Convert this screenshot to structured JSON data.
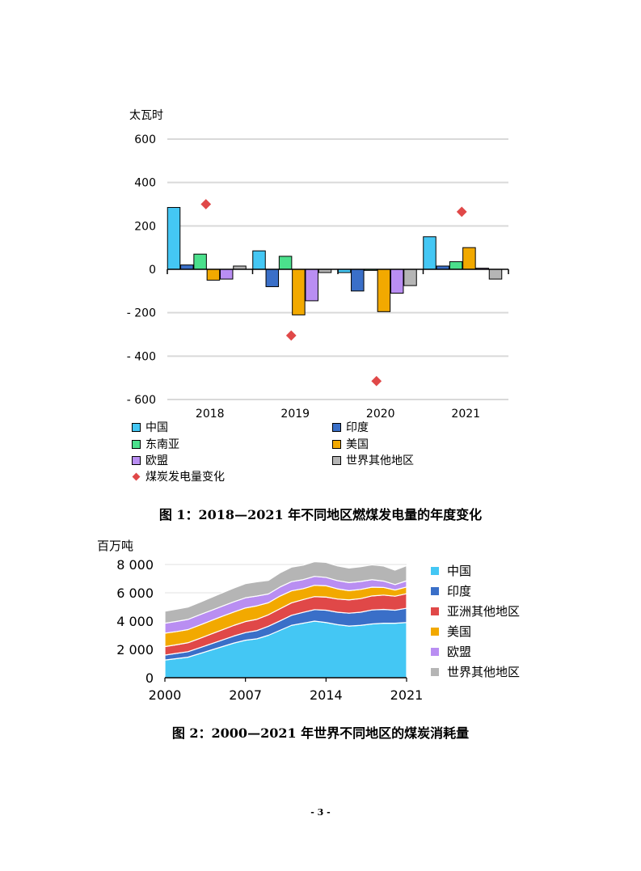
{
  "chart1": {
    "unit": "太瓦时",
    "caption": "图 1：2018—2021 年不同地区燃煤发电量的年度变化",
    "colors": {
      "中国": "#44c7f4",
      "印度": "#3a6fc8",
      "东南亚": "#4be08c",
      "美国": "#f2a900",
      "欧盟": "#b98ef2",
      "世界其他地区": "#b5b5b5",
      "煤炭发电量变化": "#e04848"
    },
    "icons": {
      "煤炭发电量变化": "diamond-marker"
    },
    "legend": [
      "中国",
      "印度",
      "东南亚",
      "美国",
      "欧盟",
      "世界其他地区",
      "煤炭发电量变化"
    ],
    "chart_data": {
      "type": "bar",
      "categories": [
        "2018",
        "2019",
        "2020",
        "2021"
      ],
      "ylim": [
        -600,
        600
      ],
      "yticks": [
        600,
        400,
        200,
        0,
        -200,
        -400,
        -600
      ],
      "ytick_labels": [
        "600",
        "400",
        "200",
        "0",
        "- 200",
        "- 400",
        "- 600"
      ],
      "grid": true,
      "series": [
        {
          "name": "中国",
          "values": [
            285,
            85,
            -15,
            150
          ]
        },
        {
          "name": "印度",
          "values": [
            20,
            -80,
            -100,
            15
          ]
        },
        {
          "name": "东南亚",
          "values": [
            70,
            60,
            -5,
            35
          ]
        },
        {
          "name": "美国",
          "values": [
            -50,
            -210,
            -195,
            100
          ]
        },
        {
          "name": "欧盟",
          "values": [
            -45,
            -145,
            -110,
            5
          ]
        },
        {
          "name": "世界其他地区",
          "values": [
            15,
            -15,
            -75,
            -45
          ]
        }
      ],
      "markers": {
        "name": "煤炭发电量变化",
        "values": [
          300,
          -305,
          -515,
          265
        ]
      }
    }
  },
  "chart2": {
    "unit": "百万吨",
    "caption": "图 2：2000—2021 年世界不同地区的煤炭消耗量",
    "colors": {
      "中国": "#44c7f4",
      "印度": "#3a6fc8",
      "亚洲其他地区": "#e04848",
      "美国": "#f2a900",
      "欧盟": "#b98ef2",
      "世界其他地区": "#b5b5b5"
    },
    "legend": [
      "中国",
      "印度",
      "亚洲其他地区",
      "美国",
      "欧盟",
      "世界其他地区"
    ],
    "chart_data": {
      "type": "area",
      "x": [
        2000,
        2001,
        2002,
        2003,
        2004,
        2005,
        2006,
        2007,
        2008,
        2009,
        2010,
        2011,
        2012,
        2013,
        2014,
        2015,
        2016,
        2017,
        2018,
        2019,
        2020,
        2021
      ],
      "xticks": [
        2000,
        2007,
        2014,
        2021
      ],
      "ylim": [
        0,
        8000
      ],
      "yticks": [
        0,
        2000,
        4000,
        6000,
        8000
      ],
      "ytick_labels": [
        "0",
        "2 000",
        "4 000",
        "6 000",
        "8 000"
      ],
      "stacked": true,
      "series": [
        {
          "name": "中国",
          "values": [
            1250,
            1350,
            1450,
            1700,
            1950,
            2200,
            2450,
            2650,
            2750,
            3000,
            3350,
            3700,
            3850,
            4000,
            3900,
            3750,
            3650,
            3700,
            3800,
            3850,
            3850,
            3900
          ]
        },
        {
          "name": "印度",
          "values": [
            350,
            370,
            390,
            410,
            440,
            470,
            500,
            540,
            580,
            640,
            670,
            710,
            770,
            810,
            870,
            880,
            910,
            930,
            990,
            980,
            920,
            1010
          ]
        },
        {
          "name": "亚洲其他地区",
          "values": [
            600,
            610,
            630,
            660,
            690,
            720,
            750,
            780,
            800,
            810,
            850,
            880,
            900,
            920,
            930,
            930,
            940,
            960,
            990,
            1010,
            990,
            1030
          ]
        },
        {
          "name": "美国",
          "values": [
            950,
            930,
            930,
            940,
            950,
            960,
            950,
            960,
            950,
            850,
            900,
            850,
            770,
            800,
            800,
            720,
            650,
            650,
            620,
            540,
            440,
            470
          ]
        },
        {
          "name": "欧盟",
          "values": [
            700,
            720,
            720,
            730,
            720,
            710,
            720,
            720,
            690,
            620,
            640,
            650,
            640,
            630,
            590,
            580,
            570,
            560,
            530,
            450,
            380,
            440
          ]
        },
        {
          "name": "世界其他地区",
          "values": [
            850,
            860,
            870,
            880,
            910,
            940,
            970,
            1000,
            1010,
            960,
            1000,
            1020,
            1020,
            1040,
            1060,
            1040,
            1030,
            1040,
            1050,
            1060,
            1020,
            1070
          ]
        }
      ]
    }
  },
  "page_number": "- 3 -"
}
